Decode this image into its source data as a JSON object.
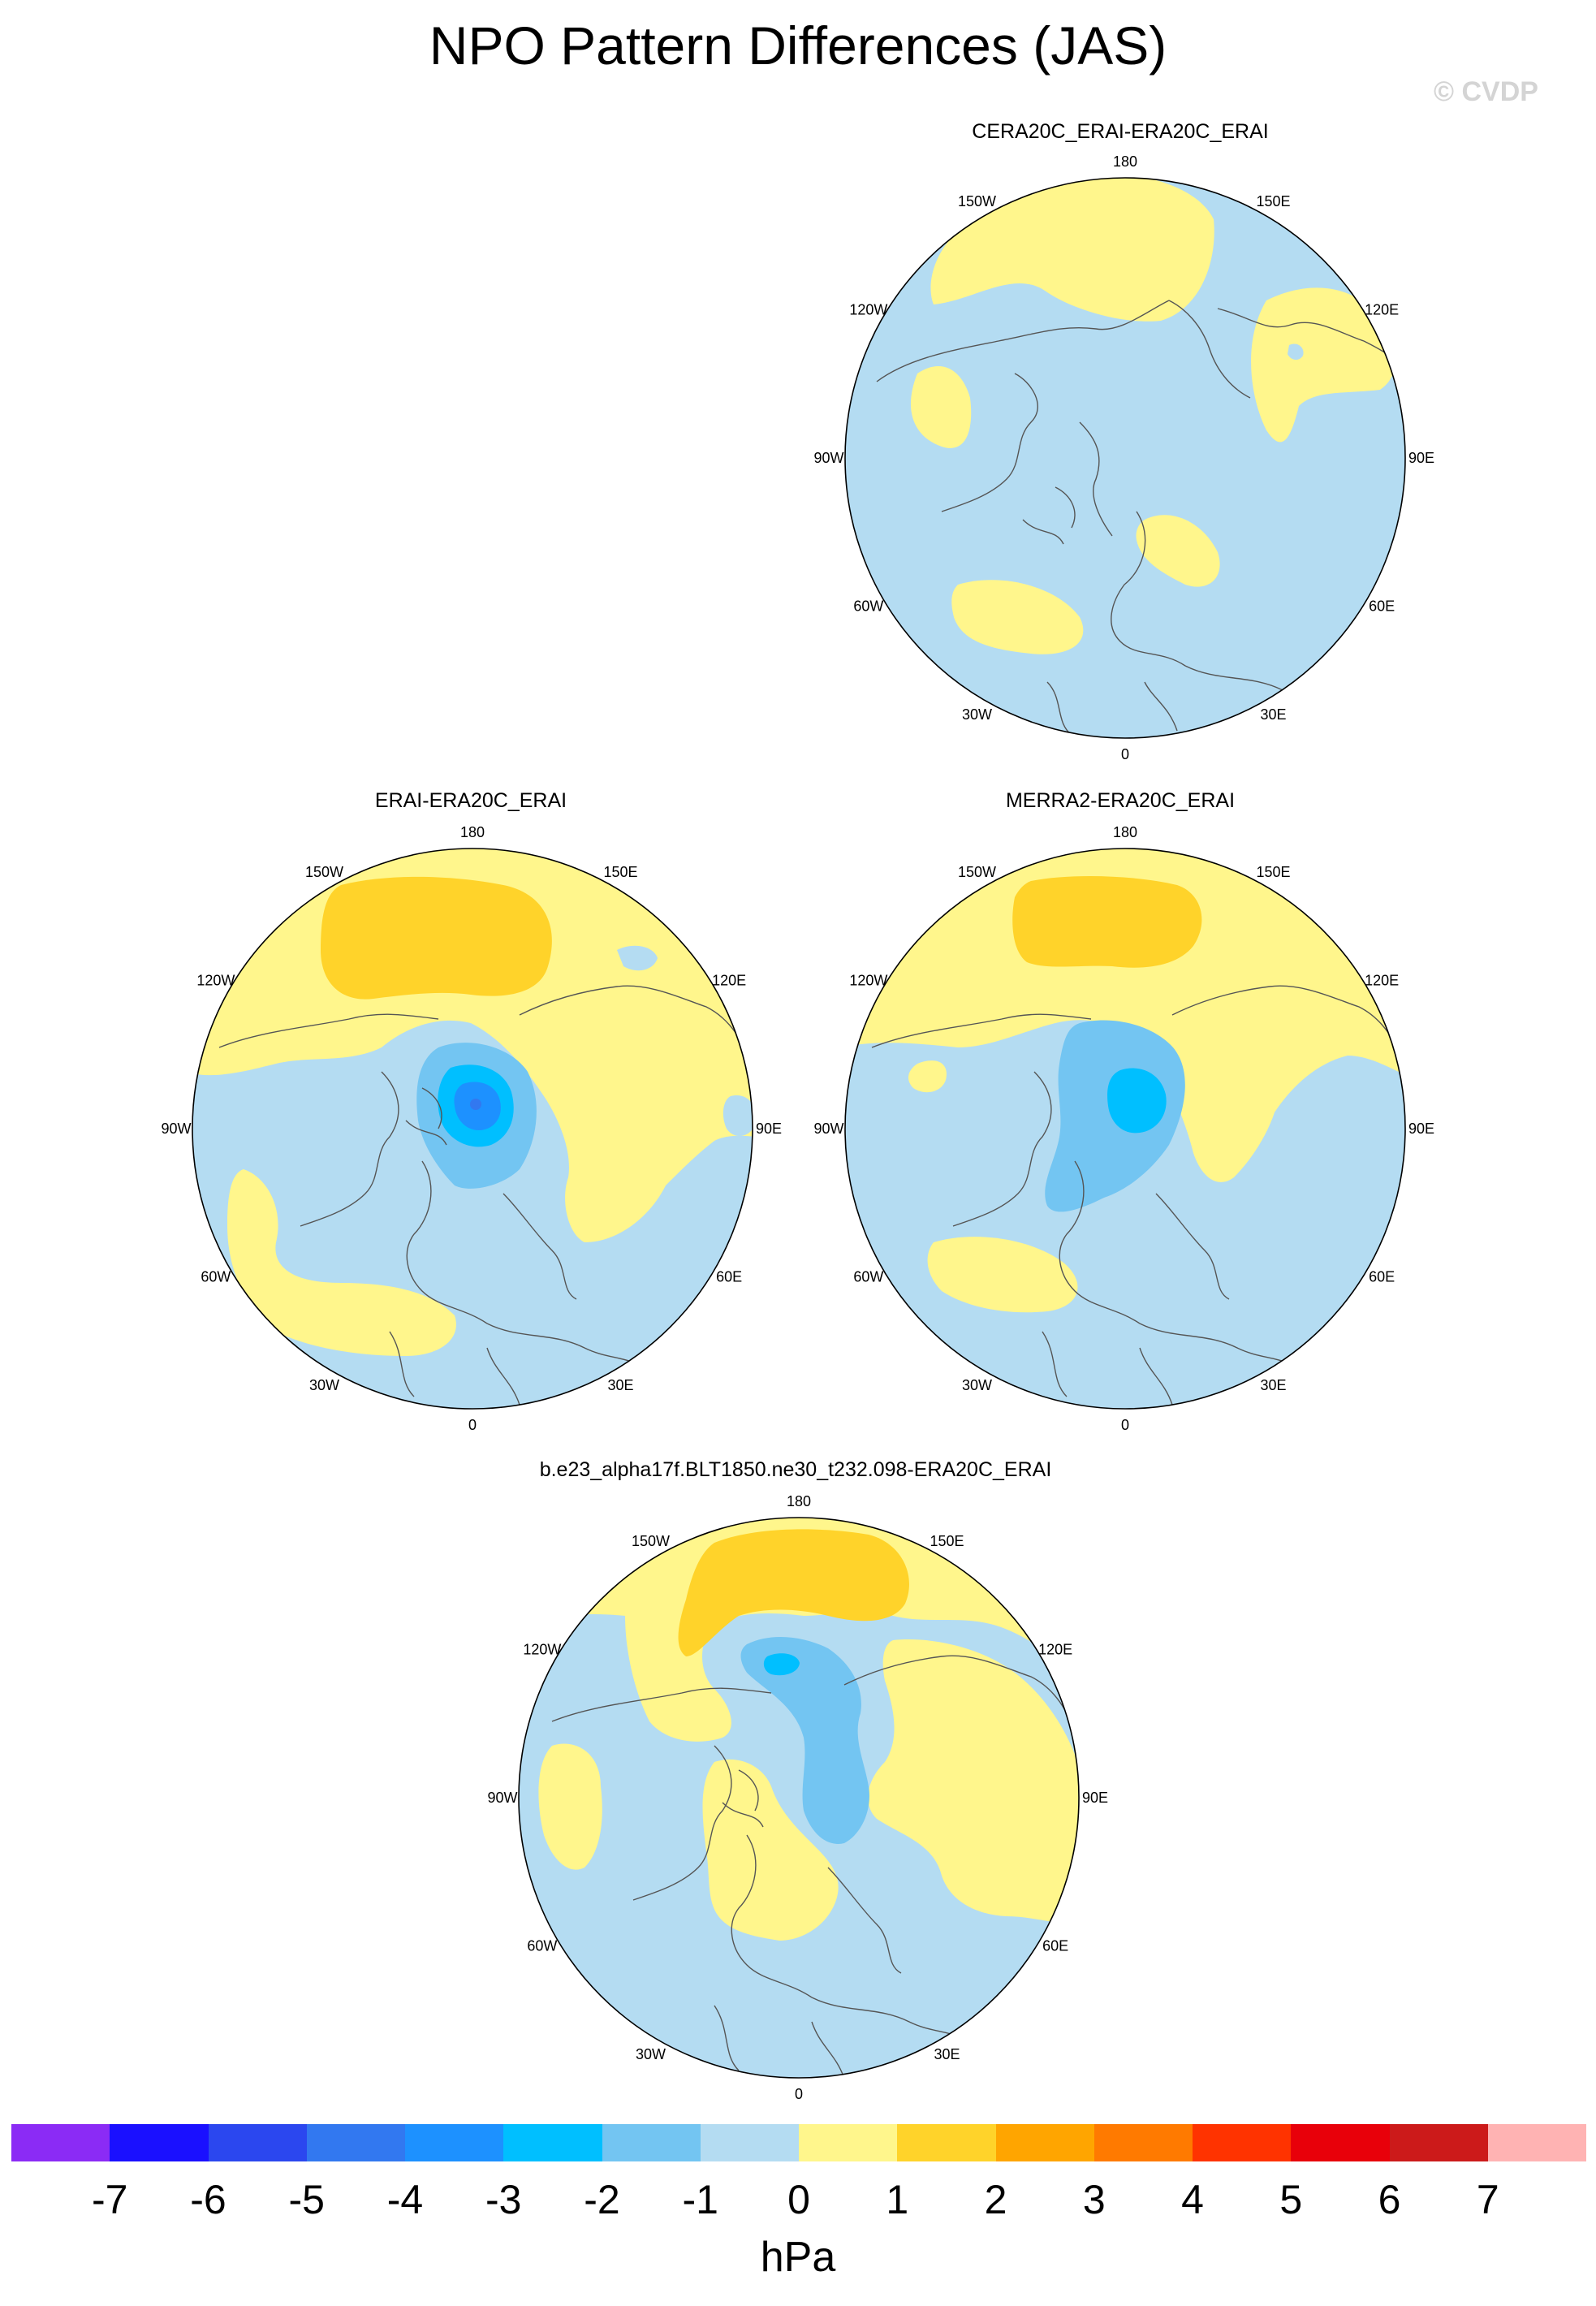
{
  "title": "NPO Pattern Differences (JAS)",
  "watermark": "© CVDP",
  "colors": {
    "background": "#b4dcf2",
    "land_outline": "#555555",
    "levels": {
      "neg1_0": "#b4dcf2",
      "0_1": "#fff68c",
      "1_2": "#ffd32a",
      "neg2_neg1": "#73c5f2",
      "neg3_neg2": "#00bfff",
      "neg4_neg3": "#1d91ff"
    }
  },
  "lon_labels": [
    "180",
    "150E",
    "120E",
    "90E",
    "60E",
    "30E",
    "0",
    "30W",
    "60W",
    "90W",
    "120W",
    "150W"
  ],
  "panels": [
    {
      "title": "CERA20C_ERAI-ERA20C_ERAI"
    },
    {
      "title": "ERAI-ERA20C_ERAI"
    },
    {
      "title": "MERRA2-ERA20C_ERAI"
    },
    {
      "title": "b.e23_alpha17f.BLT1850.ne30_t232.098-ERA20C_ERAI"
    }
  ],
  "colorbar": {
    "colors": [
      "#8b2bf5",
      "#1a10ff",
      "#2b47ef",
      "#3278f0",
      "#1d91ff",
      "#00bfff",
      "#73c5f2",
      "#b4dcf2",
      "#fff68c",
      "#ffd32a",
      "#ffa500",
      "#ff7a00",
      "#ff3300",
      "#e8000a",
      "#cc1a1a",
      "#ffb3b3"
    ],
    "ticks": [
      "-7",
      "-6",
      "-5",
      "-4",
      "-3",
      "-2",
      "-1",
      "0",
      "1",
      "2",
      "3",
      "4",
      "5",
      "6",
      "7"
    ],
    "units": "hPa"
  }
}
